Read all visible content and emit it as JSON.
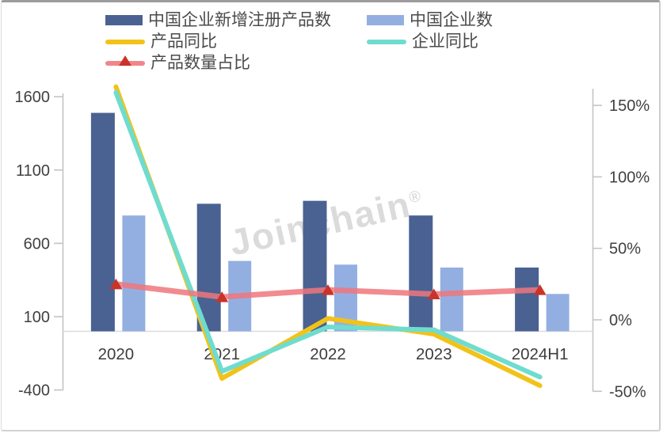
{
  "legend": {
    "items": [
      {
        "label": "中国企业新增注册产品数",
        "swatch": "bar",
        "color": "#4a6292"
      },
      {
        "label": "中国企业数",
        "swatch": "bar",
        "color": "#93afe1"
      },
      {
        "label": "产品同比",
        "swatch": "line",
        "color": "#f1c319"
      },
      {
        "label": "企业同比",
        "swatch": "line",
        "color": "#6fdccf"
      },
      {
        "label": "产品数量占比",
        "swatch": "line-triangle",
        "color": "#f0868c",
        "marker_color": "#cb3328"
      }
    ]
  },
  "watermark": {
    "text": "Joinchain",
    "reg": "®"
  },
  "chart_data": {
    "type": "bar+line",
    "title": "",
    "categories": [
      "2020",
      "2021",
      "2022",
      "2023",
      "2024H1"
    ],
    "series": [
      {
        "name": "中国企业新增注册产品数",
        "type": "bar",
        "axis": "left",
        "color": "#4a6292",
        "values": [
          1490,
          870,
          890,
          790,
          435
        ]
      },
      {
        "name": "中国企业数",
        "type": "bar",
        "axis": "left",
        "color": "#93afe1",
        "values": [
          790,
          480,
          455,
          435,
          255
        ]
      },
      {
        "name": "产品同比",
        "type": "line",
        "axis": "right",
        "color": "#f1c319",
        "values_pct": [
          163,
          -41,
          1,
          -10,
          -46
        ]
      },
      {
        "name": "企业同比",
        "type": "line",
        "axis": "right",
        "color": "#6fdccf",
        "values_pct": [
          159,
          -36,
          -5,
          -7,
          -40
        ]
      },
      {
        "name": "产品数量占比",
        "type": "line",
        "axis": "right",
        "color": "#ee777d",
        "marker": "triangle",
        "marker_color": "#cb3328",
        "line_opacity": 0.85,
        "values_pct": [
          25,
          16,
          21,
          18,
          21
        ]
      }
    ],
    "left_axis": {
      "min": -400,
      "max": 1600,
      "tick_values": [
        1600,
        1100,
        600,
        100,
        -400
      ],
      "tick_labels": [
        "1600",
        "1100",
        "600",
        "100",
        "-400"
      ]
    },
    "right_axis": {
      "min": -50,
      "max": 150,
      "tick_values": [
        150,
        100,
        50,
        0,
        -50
      ],
      "tick_labels": [
        "150%",
        "100%",
        "50%",
        "0%",
        "-50%"
      ]
    },
    "grid": false,
    "legend_position": "top-left",
    "axis_line_color": "#c4c4c4",
    "baseline_color": "#dcdcdc",
    "tick_label_color": "#404040",
    "x_label_color": "#3d3d3d"
  }
}
